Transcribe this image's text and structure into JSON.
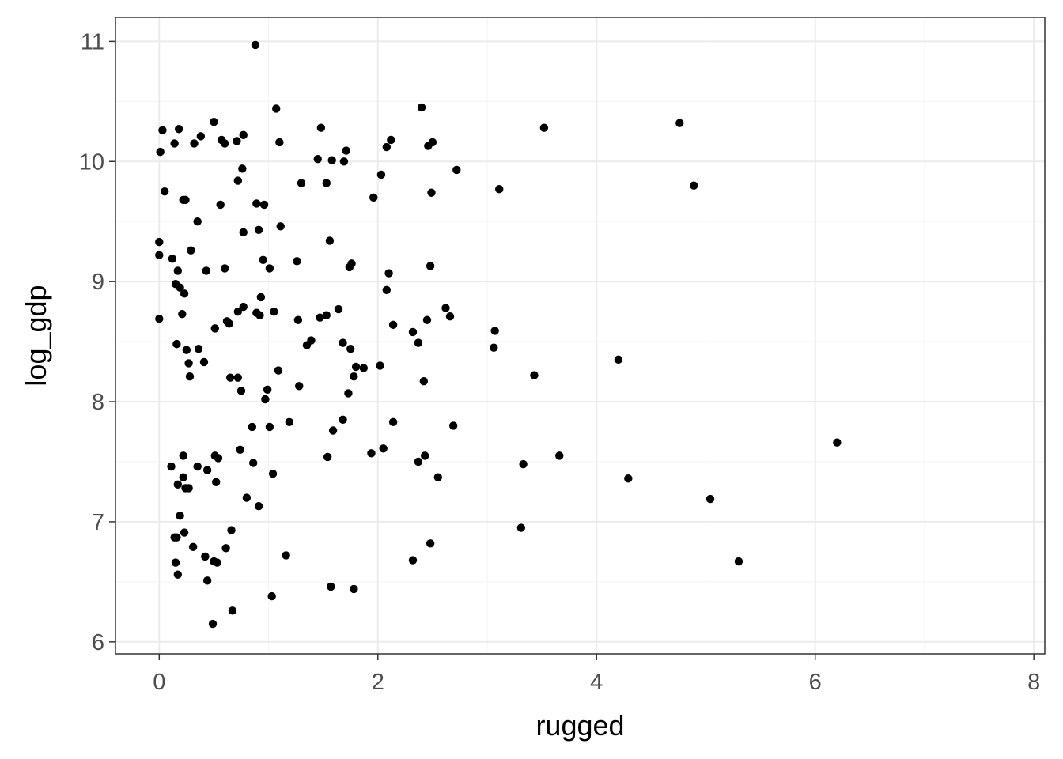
{
  "chart_data": {
    "type": "scatter",
    "title": "",
    "xlabel": "rugged",
    "ylabel": "log_gdp",
    "xlim": [
      -0.4,
      8.1
    ],
    "ylim": [
      5.9,
      11.2
    ],
    "x_ticks": [
      0,
      2,
      4,
      6,
      8
    ],
    "x_tick_labels": [
      "0",
      "2",
      "4",
      "6",
      "8"
    ],
    "y_ticks": [
      6,
      7,
      8,
      9,
      10,
      11
    ],
    "y_tick_labels": [
      "6",
      "7",
      "8",
      "9",
      "10",
      "11"
    ],
    "grid": true,
    "legend": "none",
    "colors": {
      "points": "#000000",
      "grid_major": "#ebebeb",
      "grid_minor": "#f5f5f5",
      "panel_border": "#333333",
      "background": "#ffffff"
    },
    "points": [
      [
        0.88,
        10.97
      ],
      [
        0.03,
        10.26
      ],
      [
        0.18,
        10.27
      ],
      [
        0.14,
        10.15
      ],
      [
        0.32,
        10.15
      ],
      [
        0.38,
        10.21
      ],
      [
        0.5,
        10.33
      ],
      [
        0.57,
        10.18
      ],
      [
        0.6,
        10.15
      ],
      [
        0.71,
        10.17
      ],
      [
        0.77,
        10.22
      ],
      [
        1.07,
        10.44
      ],
      [
        1.1,
        10.16
      ],
      [
        1.48,
        10.28
      ],
      [
        1.45,
        10.02
      ],
      [
        1.58,
        10.01
      ],
      [
        1.69,
        10.0
      ],
      [
        1.71,
        10.09
      ],
      [
        2.08,
        10.12
      ],
      [
        2.12,
        10.18
      ],
      [
        2.4,
        10.45
      ],
      [
        2.46,
        10.13
      ],
      [
        2.5,
        10.16
      ],
      [
        3.52,
        10.28
      ],
      [
        4.76,
        10.32
      ],
      [
        0.01,
        10.08
      ],
      [
        0.05,
        9.75
      ],
      [
        0.22,
        9.68
      ],
      [
        0.24,
        9.68
      ],
      [
        0.35,
        9.5
      ],
      [
        0.56,
        9.64
      ],
      [
        0.72,
        9.84
      ],
      [
        0.76,
        9.94
      ],
      [
        0.89,
        9.65
      ],
      [
        0.96,
        9.64
      ],
      [
        1.3,
        9.82
      ],
      [
        1.53,
        9.82
      ],
      [
        2.03,
        9.89
      ],
      [
        1.96,
        9.7
      ],
      [
        2.49,
        9.74
      ],
      [
        2.72,
        9.93
      ],
      [
        3.11,
        9.77
      ],
      [
        4.89,
        9.8
      ],
      [
        0.0,
        9.33
      ],
      [
        0.0,
        9.22
      ],
      [
        0.12,
        9.19
      ],
      [
        0.17,
        9.09
      ],
      [
        0.15,
        8.98
      ],
      [
        0.19,
        8.95
      ],
      [
        0.23,
        8.9
      ],
      [
        0.29,
        9.26
      ],
      [
        0.43,
        9.09
      ],
      [
        0.6,
        9.11
      ],
      [
        0.77,
        9.41
      ],
      [
        0.91,
        9.43
      ],
      [
        0.95,
        9.18
      ],
      [
        1.01,
        9.11
      ],
      [
        1.11,
        9.46
      ],
      [
        1.26,
        9.17
      ],
      [
        1.56,
        9.34
      ],
      [
        1.74,
        9.12
      ],
      [
        1.76,
        9.15
      ],
      [
        2.1,
        9.07
      ],
      [
        2.08,
        8.93
      ],
      [
        2.48,
        9.13
      ],
      [
        0.0,
        8.69
      ],
      [
        0.21,
        8.73
      ],
      [
        0.16,
        8.48
      ],
      [
        0.25,
        8.43
      ],
      [
        0.36,
        8.44
      ],
      [
        0.51,
        8.61
      ],
      [
        0.62,
        8.67
      ],
      [
        0.64,
        8.65
      ],
      [
        0.72,
        8.75
      ],
      [
        0.77,
        8.79
      ],
      [
        0.89,
        8.74
      ],
      [
        0.93,
        8.87
      ],
      [
        0.92,
        8.72
      ],
      [
        1.05,
        8.75
      ],
      [
        1.27,
        8.68
      ],
      [
        1.35,
        8.47
      ],
      [
        1.39,
        8.51
      ],
      [
        1.47,
        8.7
      ],
      [
        1.53,
        8.72
      ],
      [
        1.64,
        8.77
      ],
      [
        1.68,
        8.49
      ],
      [
        1.75,
        8.44
      ],
      [
        2.14,
        8.64
      ],
      [
        2.32,
        8.58
      ],
      [
        2.37,
        8.49
      ],
      [
        2.45,
        8.68
      ],
      [
        2.62,
        8.78
      ],
      [
        2.66,
        8.71
      ],
      [
        3.07,
        8.59
      ],
      [
        3.06,
        8.45
      ],
      [
        0.27,
        8.32
      ],
      [
        0.28,
        8.21
      ],
      [
        0.41,
        8.33
      ],
      [
        0.65,
        8.2
      ],
      [
        0.72,
        8.2
      ],
      [
        0.75,
        8.09
      ],
      [
        0.97,
        8.02
      ],
      [
        0.99,
        8.1
      ],
      [
        1.09,
        8.26
      ],
      [
        1.28,
        8.13
      ],
      [
        1.78,
        8.21
      ],
      [
        1.8,
        8.29
      ],
      [
        1.87,
        8.28
      ],
      [
        2.02,
        8.3
      ],
      [
        2.42,
        8.17
      ],
      [
        1.73,
        8.07
      ],
      [
        3.43,
        8.22
      ],
      [
        4.2,
        8.35
      ],
      [
        0.85,
        7.79
      ],
      [
        1.01,
        7.79
      ],
      [
        1.19,
        7.83
      ],
      [
        1.59,
        7.76
      ],
      [
        1.68,
        7.85
      ],
      [
        2.14,
        7.83
      ],
      [
        2.69,
        7.8
      ],
      [
        0.74,
        7.6
      ],
      [
        1.94,
        7.57
      ],
      [
        2.05,
        7.61
      ],
      [
        6.2,
        7.66
      ],
      [
        0.11,
        7.46
      ],
      [
        0.22,
        7.55
      ],
      [
        0.35,
        7.46
      ],
      [
        0.44,
        7.43
      ],
      [
        0.51,
        7.55
      ],
      [
        0.54,
        7.53
      ],
      [
        0.86,
        7.49
      ],
      [
        1.04,
        7.4
      ],
      [
        1.54,
        7.54
      ],
      [
        2.37,
        7.5
      ],
      [
        2.43,
        7.55
      ],
      [
        3.33,
        7.48
      ],
      [
        3.66,
        7.55
      ],
      [
        0.17,
        7.31
      ],
      [
        0.22,
        7.37
      ],
      [
        0.24,
        7.28
      ],
      [
        0.27,
        7.28
      ],
      [
        0.52,
        7.33
      ],
      [
        0.8,
        7.2
      ],
      [
        0.91,
        7.13
      ],
      [
        2.55,
        7.37
      ],
      [
        4.29,
        7.36
      ],
      [
        5.04,
        7.19
      ],
      [
        0.19,
        7.05
      ],
      [
        0.14,
        6.87
      ],
      [
        0.16,
        6.87
      ],
      [
        0.23,
        6.91
      ],
      [
        0.31,
        6.79
      ],
      [
        0.66,
        6.93
      ],
      [
        0.61,
        6.78
      ],
      [
        1.16,
        6.72
      ],
      [
        3.31,
        6.95
      ],
      [
        2.48,
        6.82
      ],
      [
        2.32,
        6.68
      ],
      [
        5.3,
        6.67
      ],
      [
        0.15,
        6.66
      ],
      [
        0.17,
        6.56
      ],
      [
        0.42,
        6.71
      ],
      [
        0.5,
        6.67
      ],
      [
        0.53,
        6.66
      ],
      [
        0.44,
        6.51
      ],
      [
        1.57,
        6.46
      ],
      [
        1.78,
        6.44
      ],
      [
        1.03,
        6.38
      ],
      [
        0.67,
        6.26
      ],
      [
        0.49,
        6.15
      ]
    ]
  }
}
